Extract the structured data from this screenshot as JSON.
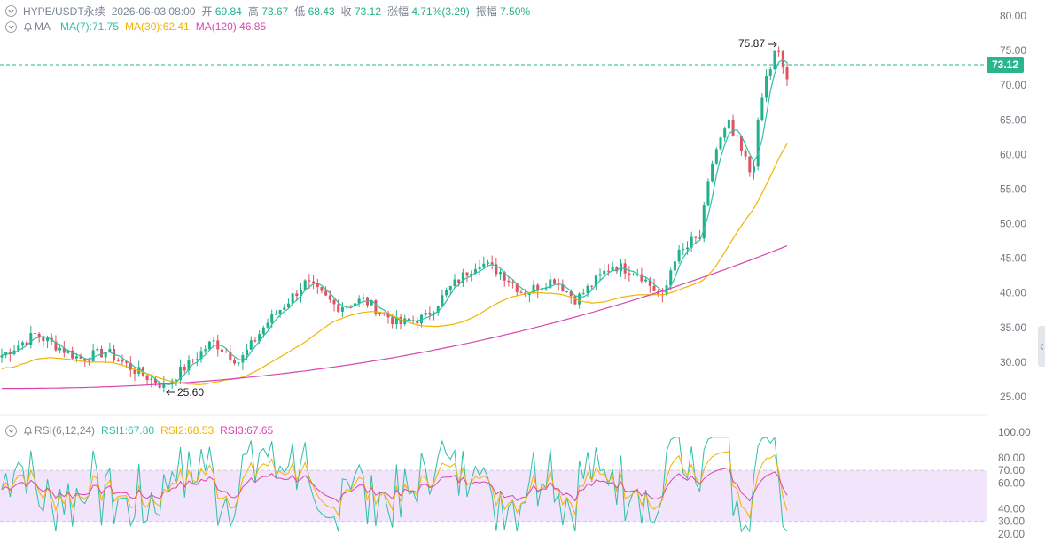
{
  "header": {
    "symbol": "HYPE/USDT永续",
    "datetime": "2026-06-03 08:00",
    "open_label": "开",
    "open": "69.84",
    "high_label": "高",
    "high": "73.67",
    "low_label": "低",
    "low": "68.43",
    "close_label": "收",
    "close": "73.12",
    "change_label": "涨幅",
    "change": "4.71%(3.29)",
    "amp_label": "振幅",
    "amp": "7.50%"
  },
  "ma": {
    "label": "MA",
    "ma7": "MA(7):71.75",
    "ma30": "MA(30):62.41",
    "ma120": "MA(120):46.85"
  },
  "rsi": {
    "label": "RSI(6,12,24)",
    "rsi1": "RSI1:67.80",
    "rsi2": "RSI2:68.53",
    "rsi3": "RSI3:67.65"
  },
  "price_axis": [
    "80.00",
    "75.00",
    "70.00",
    "65.00",
    "60.00",
    "55.00",
    "50.00",
    "45.00",
    "40.00",
    "35.00",
    "30.00",
    "25.00"
  ],
  "rsi_axis": [
    "100.00",
    "80.00",
    "70.00",
    "60.00",
    "40.00",
    "30.00",
    "20.00"
  ],
  "current_price": "73.12",
  "annotations": {
    "high": "75.87",
    "low": "25.60"
  },
  "colors": {
    "up": "#22b08a",
    "down": "#e05260",
    "ma7": "#2fbfa8",
    "ma30": "#f0b400",
    "ma120": "#d946b0",
    "rsi_band": "#f2e4fb"
  }
}
